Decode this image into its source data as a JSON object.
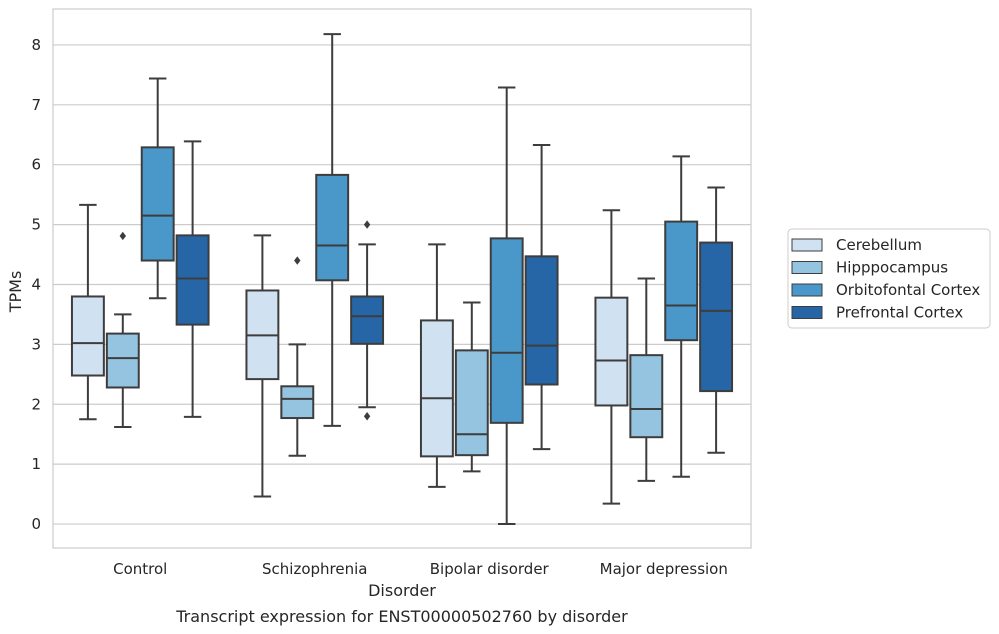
{
  "chart_data": {
    "type": "box",
    "title": "",
    "caption": "Transcript expression for ENST00000502760 by disorder",
    "xlabel": "Disorder",
    "ylabel": "TPMs",
    "ylim": [
      -0.4,
      8.6
    ],
    "yticks": [
      0,
      1,
      2,
      3,
      4,
      5,
      6,
      7,
      8
    ],
    "grid": "horizontal",
    "legend_position": "right",
    "categories": [
      "Control",
      "Schizophrenia",
      "Bipolar disorder",
      "Major depression"
    ],
    "series": [
      {
        "name": "Cerebellum",
        "color": "#d0e1f2",
        "boxes": [
          {
            "whisker_low": 1.75,
            "q1": 2.48,
            "median": 3.02,
            "q3": 3.8,
            "whisker_high": 5.33,
            "outliers": []
          },
          {
            "whisker_low": 0.46,
            "q1": 2.42,
            "median": 3.15,
            "q3": 3.9,
            "whisker_high": 4.82,
            "outliers": []
          },
          {
            "whisker_low": 0.62,
            "q1": 1.13,
            "median": 2.1,
            "q3": 3.4,
            "whisker_high": 4.67,
            "outliers": []
          },
          {
            "whisker_low": 0.34,
            "q1": 1.98,
            "median": 2.73,
            "q3": 3.78,
            "whisker_high": 5.24,
            "outliers": []
          }
        ]
      },
      {
        "name": "Hipppocampus",
        "color": "#94c4df",
        "boxes": [
          {
            "whisker_low": 1.62,
            "q1": 2.28,
            "median": 2.77,
            "q3": 3.18,
            "whisker_high": 3.5,
            "outliers": [
              4.81
            ]
          },
          {
            "whisker_low": 1.14,
            "q1": 1.77,
            "median": 2.09,
            "q3": 2.3,
            "whisker_high": 3.0,
            "outliers": [
              4.4
            ]
          },
          {
            "whisker_low": 0.88,
            "q1": 1.15,
            "median": 1.5,
            "q3": 2.9,
            "whisker_high": 3.7,
            "outliers": []
          },
          {
            "whisker_low": 0.72,
            "q1": 1.45,
            "median": 1.92,
            "q3": 2.82,
            "whisker_high": 4.1,
            "outliers": []
          }
        ]
      },
      {
        "name": "Orbitofontal Cortex",
        "color": "#4a98c9",
        "boxes": [
          {
            "whisker_low": 3.77,
            "q1": 4.4,
            "median": 5.15,
            "q3": 6.29,
            "whisker_high": 7.44,
            "outliers": []
          },
          {
            "whisker_low": 1.64,
            "q1": 4.07,
            "median": 4.65,
            "q3": 5.83,
            "whisker_high": 8.18,
            "outliers": []
          },
          {
            "whisker_low": 0.0,
            "q1": 1.69,
            "median": 2.86,
            "q3": 4.77,
            "whisker_high": 7.29,
            "outliers": []
          },
          {
            "whisker_low": 0.79,
            "q1": 3.07,
            "median": 3.65,
            "q3": 5.05,
            "whisker_high": 6.14,
            "outliers": []
          }
        ]
      },
      {
        "name": "Prefrontal Cortex",
        "color": "#2666a7",
        "boxes": [
          {
            "whisker_low": 1.79,
            "q1": 3.33,
            "median": 4.1,
            "q3": 4.82,
            "whisker_high": 6.39,
            "outliers": []
          },
          {
            "whisker_low": 1.95,
            "q1": 3.01,
            "median": 3.47,
            "q3": 3.8,
            "whisker_high": 4.67,
            "outliers": [
              5.0,
              1.8
            ]
          },
          {
            "whisker_low": 1.25,
            "q1": 2.33,
            "median": 2.98,
            "q3": 4.47,
            "whisker_high": 6.33,
            "outliers": []
          },
          {
            "whisker_low": 1.19,
            "q1": 2.22,
            "median": 3.56,
            "q3": 4.7,
            "whisker_high": 5.62,
            "outliers": []
          }
        ]
      }
    ]
  }
}
